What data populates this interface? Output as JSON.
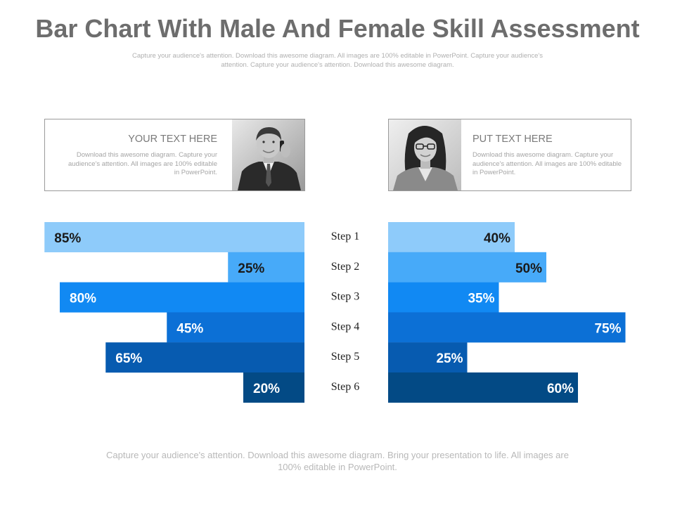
{
  "title": "Bar Chart With Male And Female Skill Assessment",
  "subtitle": "Capture your audience's attention. Download this awesome diagram. All images are 100% editable in PowerPoint. Capture your audience's attention. Capture your audience's attention. Download this awesome diagram.",
  "footer": "Capture your audience's attention. Download this awesome diagram. Bring your presentation to life. All images are 100% editable in PowerPoint.",
  "male_card": {
    "heading": "YOUR TEXT HERE",
    "body": "Download this awesome diagram. Capture your audience's attention. All images are 100% editable in PowerPoint.",
    "photo_icon": "businessman-photo"
  },
  "female_card": {
    "heading": "PUT TEXT HERE",
    "body": "Download this awesome diagram. Capture your audience's attention. All images are 100% editable in PowerPoint.",
    "photo_icon": "businesswoman-photo"
  },
  "colors": [
    "#8ecbfa",
    "#47aaf9",
    "#1189f3",
    "#0c70d6",
    "#075bb0",
    "#034a85"
  ],
  "chart_data": {
    "type": "bar",
    "categories": [
      "Step 1",
      "Step 2",
      "Step 3",
      "Step 4",
      "Step 5",
      "Step 6"
    ],
    "series": [
      {
        "values": [
          85,
          25,
          80,
          45,
          65,
          20
        ],
        "labels": [
          "85%",
          "25%",
          "80%",
          "45%",
          "65%",
          "20%"
        ]
      },
      {
        "values": [
          40,
          50,
          35,
          75,
          25,
          60
        ],
        "labels": [
          "40%",
          "50%",
          "35%",
          "75%",
          "25%",
          "60%"
        ]
      }
    ],
    "xlim": [
      0,
      100
    ]
  }
}
